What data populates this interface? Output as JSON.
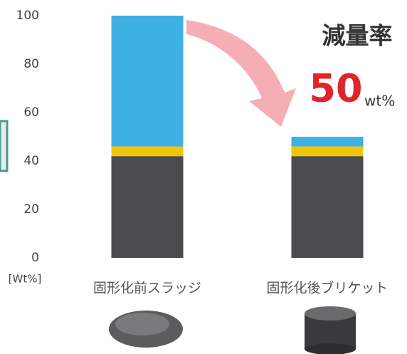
{
  "chart_data": {
    "type": "stacked_bar",
    "categories": [
      "固形化前スラッジ",
      "固形化後ブリケット"
    ],
    "series": [
      {
        "color": "#4b4b4d",
        "values": [
          42,
          42
        ]
      },
      {
        "color": "#f2c500",
        "values": [
          4,
          4
        ]
      },
      {
        "color": "#3fb0e3",
        "values": [
          54,
          4
        ]
      }
    ],
    "ylim": [
      0,
      100
    ],
    "yticks": [
      0,
      20,
      40,
      60,
      80,
      100
    ],
    "grid": false,
    "y_unit_label": "[Wt%]",
    "annotation_title": "減量率",
    "annotation_value": "50",
    "annotation_unit": "wt%"
  }
}
